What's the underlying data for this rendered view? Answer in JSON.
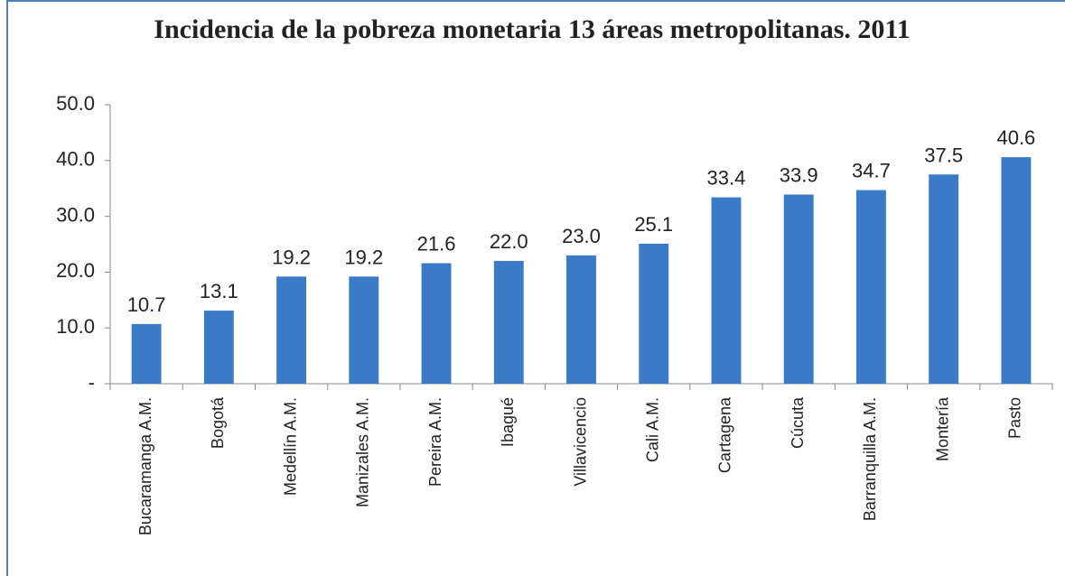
{
  "chart_data": {
    "type": "bar",
    "title": "Incidencia de la pobreza monetaria 13 áreas metropolitanas. 2011",
    "categories": [
      "Bucaramanga A.M.",
      "Bogotá",
      "Medellín A.M.",
      "Manizales A.M.",
      "Pereira A.M.",
      "Ibagué",
      "Villavicencio",
      "Cali A.M.",
      "Cartagena",
      "Cúcuta",
      "Barranquilla A.M.",
      "Montería",
      "Pasto"
    ],
    "values": [
      10.7,
      13.1,
      19.2,
      19.2,
      21.6,
      22.0,
      23.0,
      25.1,
      33.4,
      33.9,
      34.7,
      37.5,
      40.6
    ],
    "value_labels": [
      "10.7",
      "13.1",
      "19.2",
      "19.2",
      "21.6",
      "22.0",
      "23.0",
      "25.1",
      "33.4",
      "33.9",
      "34.7",
      "37.5",
      "40.6"
    ],
    "color": "#3a7bc8",
    "ylim": [
      0,
      50
    ],
    "yticks": [
      {
        "value": 0,
        "label": "-"
      },
      {
        "value": 10,
        "label": "10.0"
      },
      {
        "value": 20,
        "label": "20.0"
      },
      {
        "value": 30,
        "label": "30.0"
      },
      {
        "value": 40,
        "label": "40.0"
      },
      {
        "value": 50,
        "label": "50.0"
      }
    ],
    "grid": false
  }
}
